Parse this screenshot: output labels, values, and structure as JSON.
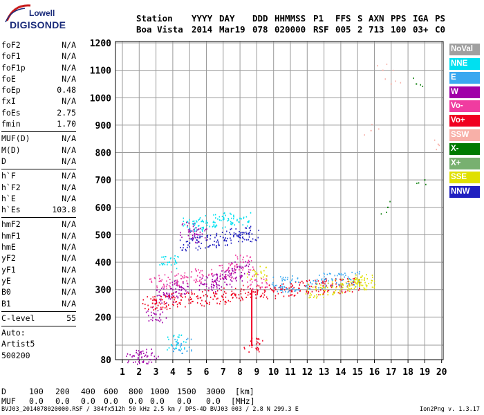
{
  "logo": {
    "line1": "Lowell",
    "line2": "DIGISONDE"
  },
  "header": {
    "row1": [
      {
        "key": "station",
        "text": "Station"
      },
      {
        "key": "yyyy",
        "text": "YYYY"
      },
      {
        "key": "day",
        "text": "DAY"
      },
      {
        "key": "ddd",
        "text": "DDD"
      },
      {
        "key": "hhmmss",
        "text": "HHMMSS"
      },
      {
        "key": "p1",
        "text": "P1"
      },
      {
        "key": "ffs",
        "text": "FFS"
      },
      {
        "key": "s",
        "text": "S"
      },
      {
        "key": "axn",
        "text": "AXN"
      },
      {
        "key": "pps",
        "text": "PPS"
      },
      {
        "key": "iga",
        "text": "IGA"
      },
      {
        "key": "ps",
        "text": "PS"
      }
    ],
    "row2": [
      {
        "key": "station",
        "text": "Boa Vista"
      },
      {
        "key": "yyyy",
        "text": "2014"
      },
      {
        "key": "day",
        "text": "Mar19"
      },
      {
        "key": "ddd",
        "text": "078"
      },
      {
        "key": "hhmmss",
        "text": "020000"
      },
      {
        "key": "p1",
        "text": "RSF"
      },
      {
        "key": "ffs",
        "text": "005"
      },
      {
        "key": "s",
        "text": "2"
      },
      {
        "key": "axn",
        "text": "713"
      },
      {
        "key": "pps",
        "text": "100"
      },
      {
        "key": "iga",
        "text": "03+"
      },
      {
        "key": "ps",
        "text": "C0"
      }
    ]
  },
  "params": {
    "group1": [
      {
        "name": "foF2",
        "value": "N/A"
      },
      {
        "name": "foF1",
        "value": "N/A"
      },
      {
        "name": "foF1p",
        "value": "N/A"
      },
      {
        "name": "foE",
        "value": "N/A"
      },
      {
        "name": "foEp",
        "value": "0.48"
      },
      {
        "name": "fxI",
        "value": "N/A"
      },
      {
        "name": "foEs",
        "value": "2.75"
      },
      {
        "name": "fmin",
        "value": "1.70"
      }
    ],
    "group2": [
      {
        "name": "MUF(D)",
        "value": "N/A"
      },
      {
        "name": "M(D)",
        "value": "N/A"
      },
      {
        "name": "D",
        "value": "N/A"
      }
    ],
    "group3": [
      {
        "name": "h`F",
        "value": "N/A"
      },
      {
        "name": "h`F2",
        "value": "N/A"
      },
      {
        "name": "h`E",
        "value": "N/A"
      },
      {
        "name": "h`Es",
        "value": "103.8"
      }
    ],
    "group4": [
      {
        "name": "hmF2",
        "value": "N/A"
      },
      {
        "name": "hmF1",
        "value": "N/A"
      },
      {
        "name": "hmE",
        "value": "N/A"
      },
      {
        "name": "yF2",
        "value": "N/A"
      },
      {
        "name": "yF1",
        "value": "N/A"
      },
      {
        "name": "yE",
        "value": "N/A"
      },
      {
        "name": "B0",
        "value": "N/A"
      },
      {
        "name": "B1",
        "value": "N/A"
      }
    ],
    "group5": [
      {
        "name": "C-level",
        "value": "55"
      }
    ],
    "autoscale": [
      "Auto:",
      "Artist5",
      "500200"
    ]
  },
  "legend": [
    {
      "label": "NoVal",
      "bg": "#a0a0a0",
      "fg": "#ffffff"
    },
    {
      "label": "NNE",
      "bg": "#00e0f0",
      "fg": "#ffffff"
    },
    {
      "label": "E",
      "bg": "#3aa8f0",
      "fg": "#ffffff"
    },
    {
      "label": "W",
      "bg": "#a000a8",
      "fg": "#ffffff"
    },
    {
      "label": "Vo-",
      "bg": "#f03ca0",
      "fg": "#ffffff"
    },
    {
      "label": "Vo+",
      "bg": "#f00020",
      "fg": "#ffffff"
    },
    {
      "label": "SSW",
      "bg": "#f8b0a8",
      "fg": "#ffffff"
    },
    {
      "label": "X-",
      "bg": "#007a00",
      "fg": "#ffffff"
    },
    {
      "label": "X+",
      "bg": "#78b070",
      "fg": "#ffffff"
    },
    {
      "label": "SSE",
      "bg": "#e0e000",
      "fg": "#ffffff"
    },
    {
      "label": "NNW",
      "bg": "#2020c0",
      "fg": "#ffffff"
    }
  ],
  "bottom": {
    "d_label": "D",
    "d_values": [
      "100",
      "200",
      "400",
      "600",
      "800",
      "1000",
      "1500",
      "3000"
    ],
    "d_unit": "[km]",
    "muf_label": "MUF",
    "muf_values": [
      "0.0",
      "0.0",
      "0.0",
      "0.0",
      "0.0",
      "0.0",
      "0.0",
      "0.0"
    ],
    "muf_unit": "[MHz]"
  },
  "footer": {
    "left": "BVJ03_2014078020000.RSF / 384fx512h 50 kHz 2.5 km / DPS-4D BVJ03 003 / 2.8 N 299.3 E",
    "right": "Ion2Png v. 1.3.17"
  },
  "chart_data": {
    "type": "scatter",
    "x_ticks": [
      "1",
      "2",
      "3",
      "4",
      "5",
      "6",
      "7",
      "8",
      "9",
      "10",
      "11",
      "12",
      "13",
      "14",
      "15",
      "16",
      "17",
      "18",
      "19",
      "20"
    ],
    "y_ticks": [
      "80",
      "100",
      "200",
      "300",
      "400",
      "500",
      "600",
      "700",
      "800",
      "900",
      "1000",
      "1100",
      "1200"
    ],
    "xlim": [
      1,
      20
    ],
    "ylim": [
      80,
      1200
    ],
    "grid": true,
    "legend_position": "right",
    "series": [
      {
        "name": "W",
        "color": "#a000a8",
        "points": [
          [
            1.7,
            85
          ],
          [
            2.5,
            85
          ],
          [
            3.0,
            210
          ],
          [
            3.5,
            280
          ],
          [
            4.0,
            300
          ],
          [
            4.5,
            310
          ],
          [
            5.0,
            520
          ],
          [
            5.5,
            500
          ],
          [
            6.0,
            320
          ],
          [
            6.5,
            330
          ],
          [
            7.0,
            340
          ],
          [
            7.5,
            360
          ],
          [
            8.0,
            380
          ]
        ]
      },
      {
        "name": "Vo+",
        "color": "#f00020",
        "points": [
          [
            2.8,
            250
          ],
          [
            3.5,
            255
          ],
          [
            4.5,
            262
          ],
          [
            5.5,
            268
          ],
          [
            6.5,
            275
          ],
          [
            7.5,
            282
          ],
          [
            8.5,
            290
          ],
          [
            9.5,
            295
          ],
          [
            10.5,
            300
          ],
          [
            11.5,
            305
          ],
          [
            12.5,
            310
          ],
          [
            13.5,
            315
          ],
          [
            14.5,
            320
          ],
          [
            8.7,
            100
          ]
        ]
      },
      {
        "name": "Vo-",
        "color": "#f03ca0",
        "points": [
          [
            3.2,
            330
          ],
          [
            4.5,
            340
          ],
          [
            5.8,
            350
          ],
          [
            7.2,
            370
          ],
          [
            8.2,
            400
          ],
          [
            9.0,
            330
          ]
        ]
      },
      {
        "name": "NNE",
        "color": "#00e0f0",
        "points": [
          [
            4.2,
            110
          ],
          [
            5.2,
            540
          ],
          [
            6.0,
            550
          ],
          [
            7.0,
            555
          ],
          [
            8.0,
            560
          ],
          [
            3.8,
            400
          ]
        ]
      },
      {
        "name": "E",
        "color": "#3aa8f0",
        "points": [
          [
            4.5,
            100
          ],
          [
            10.5,
            320
          ],
          [
            11.0,
            325
          ],
          [
            12.5,
            330
          ],
          [
            13.5,
            335
          ],
          [
            14.5,
            340
          ]
        ]
      },
      {
        "name": "SSE",
        "color": "#e0e000",
        "points": [
          [
            12.5,
            300
          ],
          [
            13.5,
            310
          ],
          [
            14.5,
            318
          ],
          [
            15.0,
            325
          ],
          [
            15.4,
            335
          ],
          [
            9.0,
            360
          ]
        ]
      },
      {
        "name": "NNW",
        "color": "#2020c0",
        "points": [
          [
            5.0,
            470
          ],
          [
            6.0,
            480
          ],
          [
            7.0,
            490
          ],
          [
            8.0,
            500
          ],
          [
            8.5,
            505
          ]
        ]
      },
      {
        "name": "X-",
        "color": "#007a00",
        "points": [
          [
            19.0,
            700
          ],
          [
            18.5,
            1050
          ],
          [
            16.8,
            600
          ]
        ]
      },
      {
        "name": "SSW",
        "color": "#f8b0a8",
        "points": [
          [
            15.8,
            880
          ],
          [
            16.5,
            1100
          ],
          [
            17.0,
            1050
          ],
          [
            19.8,
            830
          ]
        ]
      }
    ]
  }
}
